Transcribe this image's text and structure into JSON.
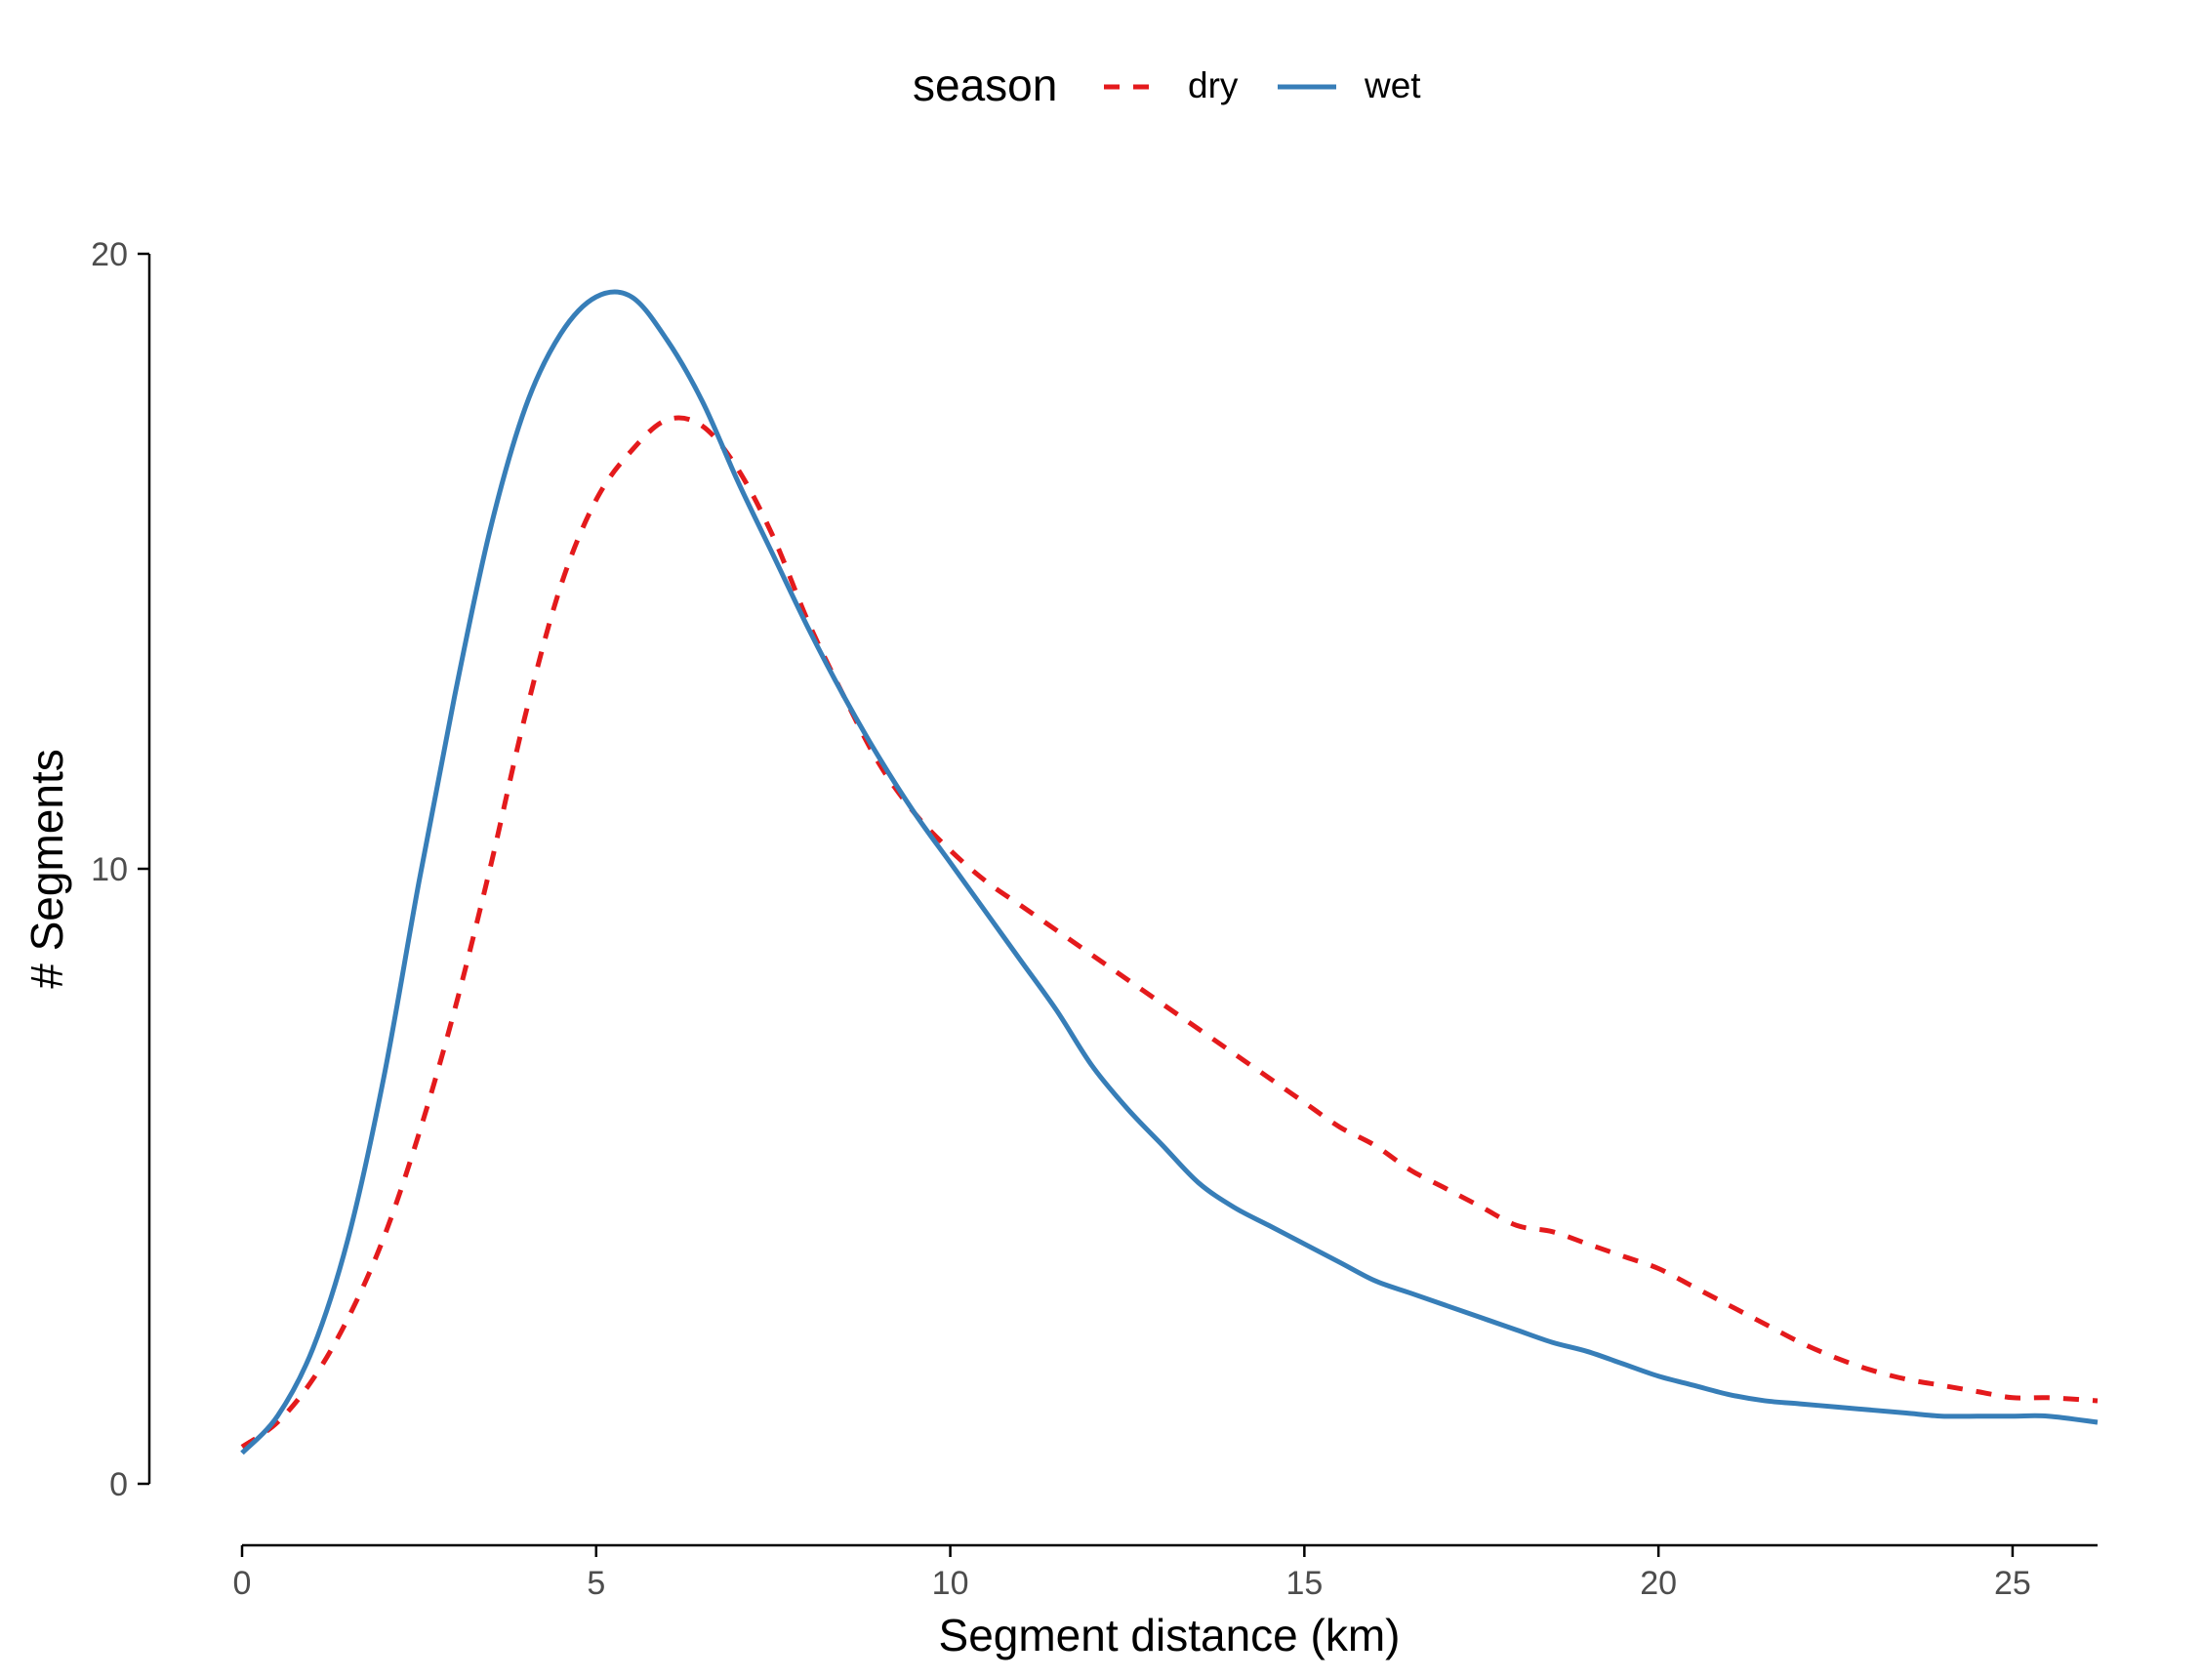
{
  "chart_data": {
    "type": "line",
    "title": "",
    "xlabel": "Segment distance (km)",
    "ylabel": "# Segments",
    "xlim": [
      0,
      26.2
    ],
    "ylim": [
      0,
      20
    ],
    "x_ticks": [
      "0",
      "5",
      "10",
      "15",
      "20",
      "25"
    ],
    "y_ticks": [
      "0",
      "10",
      "20"
    ],
    "grid": false,
    "legend": {
      "title": "season",
      "placement": "top-center"
    },
    "series": [
      {
        "name": "dry",
        "color": "#e41a1c",
        "line_style": "dashed",
        "x": [
          0,
          0.5,
          1,
          1.5,
          2,
          2.5,
          3,
          3.5,
          4,
          4.5,
          5,
          5.5,
          6,
          6.5,
          7,
          7.5,
          8,
          8.5,
          9,
          9.5,
          10,
          10.5,
          11,
          11.5,
          12,
          12.5,
          13,
          13.5,
          14,
          14.5,
          15,
          15.5,
          16,
          16.5,
          17,
          17.5,
          18,
          18.5,
          19,
          19.5,
          20,
          20.5,
          21,
          21.5,
          22,
          22.5,
          23,
          23.5,
          24,
          24.5,
          25,
          25.5,
          26.2
        ],
        "y": [
          0.6,
          1.0,
          1.7,
          2.7,
          4.0,
          5.7,
          7.7,
          10.0,
          12.5,
          14.6,
          16.0,
          16.8,
          17.3,
          17.2,
          16.5,
          15.4,
          14.0,
          12.8,
          11.7,
          10.9,
          10.3,
          9.8,
          9.4,
          9.0,
          8.6,
          8.2,
          7.8,
          7.4,
          7.0,
          6.6,
          6.2,
          5.8,
          5.5,
          5.1,
          4.8,
          4.5,
          4.2,
          4.1,
          3.9,
          3.7,
          3.5,
          3.2,
          2.9,
          2.6,
          2.3,
          2.05,
          1.85,
          1.7,
          1.6,
          1.5,
          1.4,
          1.4,
          1.35
        ]
      },
      {
        "name": "wet",
        "color": "#377eb8",
        "line_style": "solid",
        "x": [
          0,
          0.5,
          1,
          1.5,
          2,
          2.5,
          3,
          3.5,
          4,
          4.5,
          5,
          5.5,
          6,
          6.5,
          7,
          7.5,
          8,
          8.5,
          9,
          9.5,
          10,
          10.5,
          11,
          11.5,
          12,
          12.5,
          13,
          13.5,
          14,
          14.5,
          15,
          15.5,
          16,
          16.5,
          17,
          17.5,
          18,
          18.5,
          19,
          19.5,
          20,
          20.5,
          21,
          21.5,
          22,
          22.5,
          23,
          23.5,
          24,
          24.5,
          25,
          25.5,
          26.2
        ],
        "y": [
          0.5,
          1.1,
          2.2,
          4.0,
          6.6,
          9.8,
          12.8,
          15.5,
          17.5,
          18.7,
          19.3,
          19.3,
          18.6,
          17.6,
          16.3,
          15.1,
          13.9,
          12.8,
          11.8,
          10.9,
          10.1,
          9.3,
          8.5,
          7.7,
          6.8,
          6.1,
          5.5,
          4.9,
          4.5,
          4.2,
          3.9,
          3.6,
          3.3,
          3.1,
          2.9,
          2.7,
          2.5,
          2.3,
          2.15,
          1.95,
          1.75,
          1.6,
          1.45,
          1.35,
          1.3,
          1.25,
          1.2,
          1.15,
          1.1,
          1.1,
          1.1,
          1.1,
          1.0
        ]
      }
    ]
  }
}
